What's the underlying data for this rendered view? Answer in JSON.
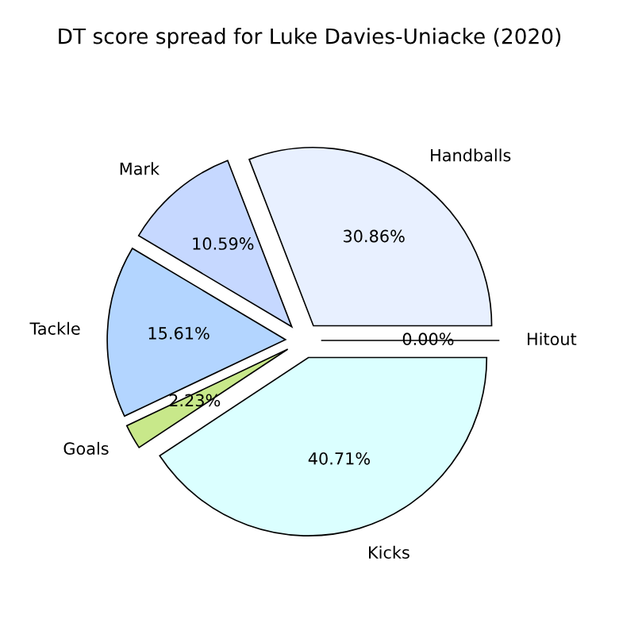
{
  "chart_data": {
    "type": "pie",
    "title": "DT score spread for Luke Davies-Uniacke (2020)",
    "categories": [
      "Hitout",
      "Handballs",
      "Mark",
      "Tackle",
      "Goals",
      "Kicks"
    ],
    "values": [
      0.0,
      30.86,
      10.59,
      15.61,
      2.23,
      40.71
    ],
    "colors": [
      "#ffe0e0",
      "#e8f0ff",
      "#c6d8ff",
      "#b3d5ff",
      "#c8e88a",
      "#dbffff"
    ],
    "value_labels": [
      "0.00%",
      "30.86%",
      "10.59%",
      "15.61%",
      "2.23%",
      "40.71%"
    ]
  }
}
